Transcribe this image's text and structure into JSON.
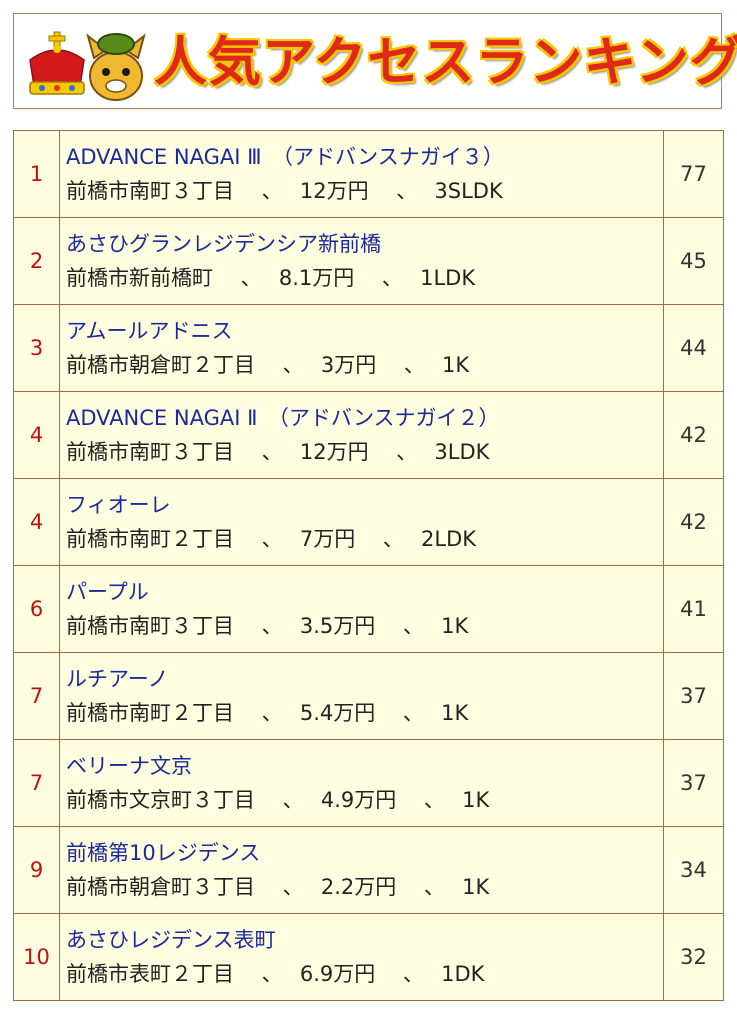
{
  "banner": {
    "title": "人気アクセスランキング",
    "icons": [
      "crown-icon",
      "mascot-horse-icon"
    ]
  },
  "colors": {
    "rank": "#c01010",
    "name": "#1a2a9a",
    "row_background": "#fffde0",
    "border": "#a06a48",
    "title": "#e02818",
    "title_outline": "#f5c800"
  },
  "rankings": [
    {
      "rank": "1",
      "name": "ADVANCE NAGAI Ⅲ　（アドバンスナガイ３）",
      "detail": "前橋市南町３丁目　 、　 12万円　 、　 3SLDK",
      "count": "77"
    },
    {
      "rank": "2",
      "name": "あさひグランレジデンシア新前橋",
      "detail": "前橋市新前橋町　 、　 8.1万円　 、　 1LDK",
      "count": "45"
    },
    {
      "rank": "3",
      "name": "アムールアドニス",
      "detail": "前橋市朝倉町２丁目　 、　 3万円　 、　 1K",
      "count": "44"
    },
    {
      "rank": "4",
      "name": "ADVANCE NAGAI Ⅱ　（アドバンスナガイ２）",
      "detail": "前橋市南町３丁目　 、　 12万円　 、　 3LDK",
      "count": "42"
    },
    {
      "rank": "4",
      "name": "フィオーレ",
      "detail": "前橋市南町２丁目　 、　 7万円　 、　 2LDK",
      "count": "42"
    },
    {
      "rank": "6",
      "name": "パープル",
      "detail": "前橋市南町３丁目　 、　 3.5万円　 、　 1K",
      "count": "41"
    },
    {
      "rank": "7",
      "name": "ルチアーノ",
      "detail": "前橋市南町２丁目　 、　 5.4万円　 、　 1K",
      "count": "37"
    },
    {
      "rank": "7",
      "name": "ベリーナ文京",
      "detail": "前橋市文京町３丁目　 、　 4.9万円　 、　 1K",
      "count": "37"
    },
    {
      "rank": "9",
      "name": "前橋第10レジデンス",
      "detail": "前橋市朝倉町３丁目　 、　 2.2万円　 、　 1K",
      "count": "34"
    },
    {
      "rank": "10",
      "name": "あさひレジデンス表町",
      "detail": "前橋市表町２丁目　 、　 6.9万円　 、　 1DK",
      "count": "32"
    }
  ]
}
